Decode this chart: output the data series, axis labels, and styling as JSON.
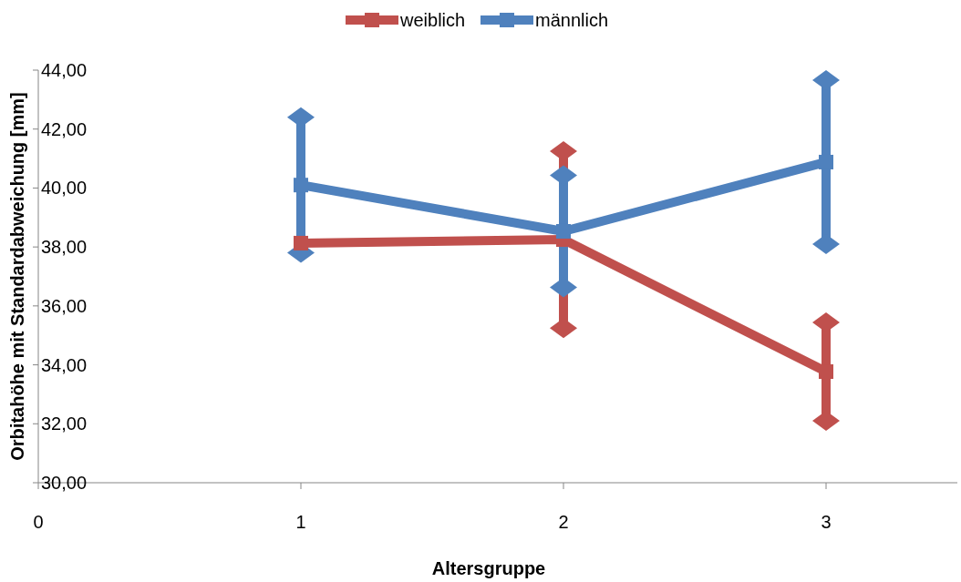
{
  "chart_data": {
    "type": "line",
    "xlabel": "Altersgruppe",
    "ylabel": "Orbitahöhe mit Standardabweichung [mm]",
    "xlim": [
      0,
      3.5
    ],
    "xticks": [
      0,
      1,
      2,
      3
    ],
    "ylim": [
      30,
      44
    ],
    "yticks": [
      {
        "value": 30,
        "label": "30,00"
      },
      {
        "value": 32,
        "label": "32,00"
      },
      {
        "value": 34,
        "label": "34,00"
      },
      {
        "value": 36,
        "label": "36,00"
      },
      {
        "value": 38,
        "label": "38,00"
      },
      {
        "value": 40,
        "label": "40,00"
      },
      {
        "value": 42,
        "label": "42,00"
      },
      {
        "value": 44,
        "label": "44,00"
      }
    ],
    "x": [
      1,
      2,
      3
    ],
    "marker": "square",
    "legend": "top",
    "grid": false,
    "series": [
      {
        "name": "weiblich",
        "color": "#c0504d",
        "values": [
          38.13,
          38.25,
          33.77
        ],
        "errors": [
          null,
          3.0,
          1.67
        ]
      },
      {
        "name": "männlich",
        "color": "#4f81bd",
        "values": [
          40.1,
          38.53,
          40.88
        ],
        "errors": [
          2.3,
          1.9,
          2.78
        ]
      }
    ]
  }
}
